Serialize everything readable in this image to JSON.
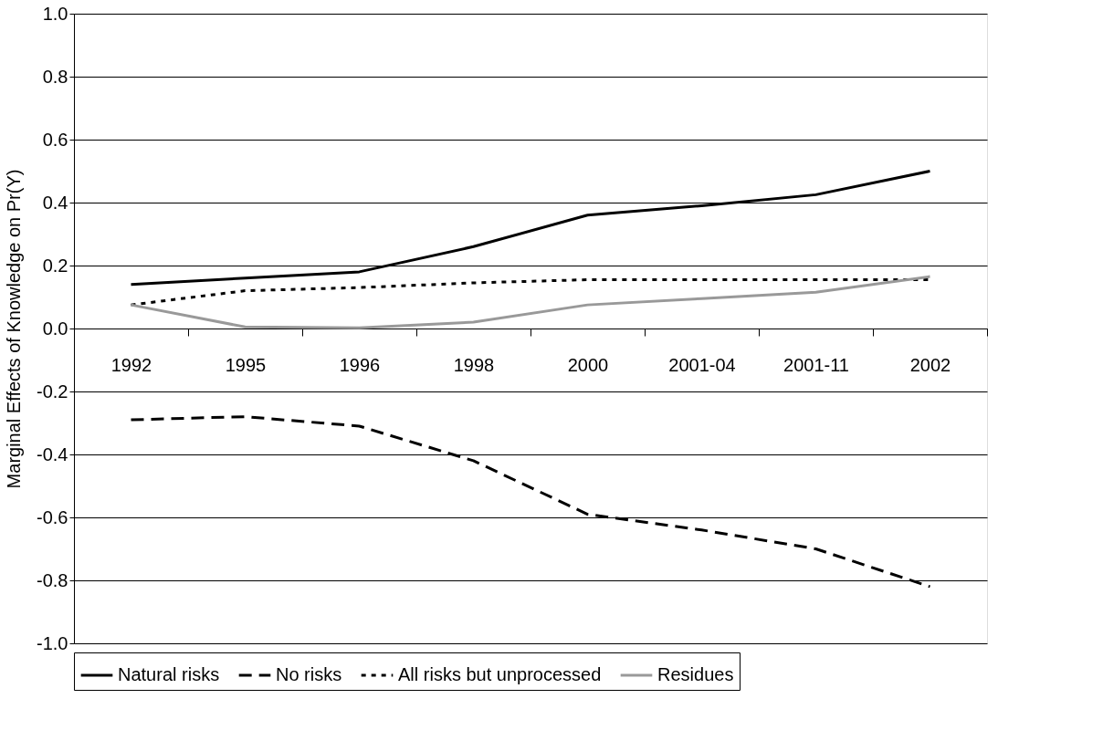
{
  "chart_data": {
    "type": "line",
    "ylabel": "Marginal Effects of Knowledge on Pr(Y)",
    "categories": [
      "1992",
      "1995",
      "1996",
      "1998",
      "2000",
      "2001-04",
      "2001-11",
      "2002"
    ],
    "series": [
      {
        "name": "Natural risks",
        "color": "#000000",
        "line_style": "solid",
        "values": [
          0.14,
          0.16,
          0.18,
          0.26,
          0.36,
          0.39,
          0.425,
          0.5
        ]
      },
      {
        "name": "No risks",
        "color": "#000000",
        "line_style": "dashed",
        "values": [
          -0.29,
          -0.28,
          -0.31,
          -0.42,
          -0.59,
          -0.64,
          -0.7,
          -0.82
        ]
      },
      {
        "name": "All risks but unprocessed",
        "color": "#000000",
        "line_style": "dotted",
        "values": [
          0.075,
          0.12,
          0.13,
          0.145,
          0.155,
          0.155,
          0.155,
          0.155
        ]
      },
      {
        "name": "Residues",
        "color": "#999999",
        "line_style": "solid",
        "values": [
          0.075,
          0.005,
          0.002,
          0.02,
          0.075,
          0.095,
          0.115,
          0.165
        ]
      }
    ],
    "ylim": [
      -1,
      1
    ],
    "yticks": [
      {
        "value": -1,
        "label": "-1.0"
      },
      {
        "value": -0.8,
        "label": "-0.8"
      },
      {
        "value": -0.6,
        "label": "-0.6"
      },
      {
        "value": -0.4,
        "label": "-0.4"
      },
      {
        "value": -0.2,
        "label": "-0.2"
      },
      {
        "value": 0,
        "label": "0.0"
      },
      {
        "value": 0.2,
        "label": "0.2"
      },
      {
        "value": 0.4,
        "label": "0.4"
      },
      {
        "value": 0.6,
        "label": "0.6"
      },
      {
        "value": 0.8,
        "label": "0.8"
      },
      {
        "value": 1,
        "label": "1.0"
      }
    ],
    "grid": "y",
    "legend": "bottom",
    "marker": "none"
  }
}
